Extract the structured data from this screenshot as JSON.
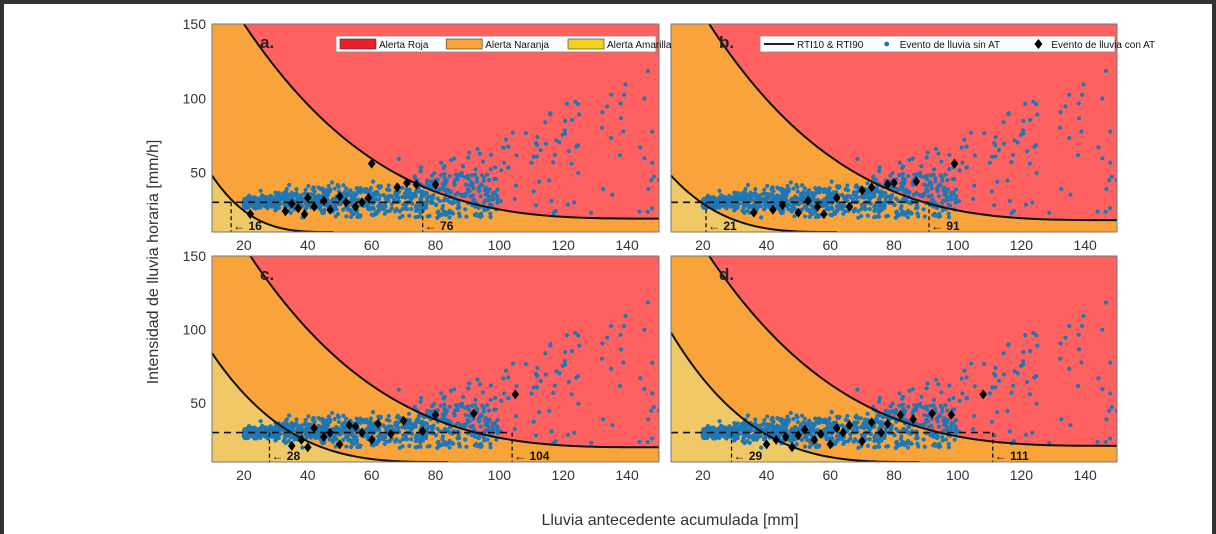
{
  "colors": {
    "red": "#fe6160",
    "orange": "#f8a43b",
    "yellow": "#f0c966",
    "blue": "#1f77b4",
    "black": "#000000"
  },
  "xlabel": "Lluvia antecedente acumulada [mm]",
  "ylabel": "Intensidad de lluvia horaria [mm/h]",
  "legend1": [
    {
      "label": "Alerta Roja",
      "color": "#e8202a"
    },
    {
      "label": "Alerta Naranja",
      "color": "#f8a43b"
    },
    {
      "label": "Alerta Amarilla",
      "color": "#f4d020"
    }
  ],
  "legend2": [
    {
      "label": "RTI10 & RTI90",
      "marker": "line"
    },
    {
      "label": "Evento de lluvia sin AT",
      "marker": "dot"
    },
    {
      "label": "Evento de lluvia con AT",
      "marker": "diamond"
    }
  ],
  "chart_data": [
    {
      "type": "scatter",
      "panel": "a.",
      "xlim": [
        10,
        150
      ],
      "ylim": [
        10,
        150
      ],
      "xticks": [
        20,
        40,
        60,
        80,
        100,
        120,
        140
      ],
      "yticks": [
        50,
        100,
        150
      ],
      "rti10": 16,
      "rti90": 76,
      "hline": 30,
      "ann10": "16",
      "ann90": "76",
      "curve10": {
        "x0": 10,
        "y0": 48,
        "x1": 48,
        "y1": 10
      },
      "curve90": {
        "x0": 20,
        "y0": 150,
        "x1": 150,
        "y1": 19
      },
      "with_at": [
        [
          22,
          22
        ],
        [
          33,
          24
        ],
        [
          35,
          29
        ],
        [
          37,
          26
        ],
        [
          39,
          22
        ],
        [
          40,
          33
        ],
        [
          42,
          27
        ],
        [
          45,
          31
        ],
        [
          47,
          25
        ],
        [
          50,
          34
        ],
        [
          52,
          30
        ],
        [
          55,
          27
        ],
        [
          57,
          30
        ],
        [
          59,
          33
        ],
        [
          60,
          56
        ],
        [
          68,
          40
        ],
        [
          71,
          43
        ],
        [
          74,
          42
        ],
        [
          80,
          42
        ]
      ]
    },
    {
      "type": "scatter",
      "panel": "b.",
      "xlim": [
        10,
        150
      ],
      "ylim": [
        10,
        150
      ],
      "xticks": [
        20,
        40,
        60,
        80,
        100,
        120,
        140
      ],
      "yticks": [],
      "rti10": 21,
      "rti90": 91,
      "hline": 30,
      "ann10": "21",
      "ann90": "91",
      "curve10": {
        "x0": 10,
        "y0": 48,
        "x1": 62,
        "y1": 10
      },
      "curve90": {
        "x0": 22,
        "y0": 150,
        "x1": 150,
        "y1": 18
      },
      "with_at": [
        [
          36,
          23
        ],
        [
          42,
          25
        ],
        [
          45,
          28
        ],
        [
          50,
          23
        ],
        [
          53,
          31
        ],
        [
          56,
          27
        ],
        [
          58,
          22
        ],
        [
          62,
          33
        ],
        [
          66,
          27
        ],
        [
          70,
          38
        ],
        [
          73,
          40
        ],
        [
          78,
          42
        ],
        [
          80,
          43
        ],
        [
          87,
          44
        ],
        [
          99,
          56
        ]
      ]
    },
    {
      "type": "scatter",
      "panel": "c.",
      "xlim": [
        10,
        150
      ],
      "ylim": [
        10,
        150
      ],
      "xticks": [
        20,
        40,
        60,
        80,
        100,
        120,
        140
      ],
      "yticks": [
        50,
        100,
        150
      ],
      "rti10": 28,
      "rti90": 104,
      "hline": 30,
      "ann10": "28",
      "ann90": "104",
      "curve10": {
        "x0": 10,
        "y0": 84,
        "x1": 84,
        "y1": 10
      },
      "curve90": {
        "x0": 22,
        "y0": 150,
        "x1": 150,
        "y1": 20
      },
      "with_at": [
        [
          35,
          21
        ],
        [
          38,
          25
        ],
        [
          40,
          20
        ],
        [
          42,
          33
        ],
        [
          45,
          27
        ],
        [
          47,
          30
        ],
        [
          50,
          22
        ],
        [
          53,
          35
        ],
        [
          55,
          34
        ],
        [
          57,
          30
        ],
        [
          60,
          25
        ],
        [
          62,
          36
        ],
        [
          66,
          29
        ],
        [
          70,
          38
        ],
        [
          76,
          31
        ],
        [
          80,
          42
        ],
        [
          92,
          43
        ],
        [
          105,
          56
        ]
      ]
    },
    {
      "type": "scatter",
      "panel": "d.",
      "xlim": [
        10,
        150
      ],
      "ylim": [
        10,
        150
      ],
      "xticks": [
        20,
        40,
        60,
        80,
        100,
        120,
        140
      ],
      "yticks": [],
      "rti10": 29,
      "rti90": 111,
      "hline": 30,
      "ann10": "29",
      "ann90": "111",
      "curve10": {
        "x0": 10,
        "y0": 98,
        "x1": 88,
        "y1": 10
      },
      "curve90": {
        "x0": 22,
        "y0": 150,
        "x1": 150,
        "y1": 21
      },
      "with_at": [
        [
          40,
          22
        ],
        [
          43,
          25
        ],
        [
          46,
          27
        ],
        [
          48,
          20
        ],
        [
          50,
          28
        ],
        [
          52,
          32
        ],
        [
          55,
          25
        ],
        [
          57,
          29
        ],
        [
          60,
          22
        ],
        [
          62,
          33
        ],
        [
          64,
          30
        ],
        [
          66,
          35
        ],
        [
          70,
          24
        ],
        [
          73,
          37
        ],
        [
          76,
          30
        ],
        [
          78,
          36
        ],
        [
          82,
          42
        ],
        [
          86,
          39
        ],
        [
          92,
          43
        ],
        [
          98,
          42
        ],
        [
          108,
          56
        ]
      ]
    }
  ]
}
